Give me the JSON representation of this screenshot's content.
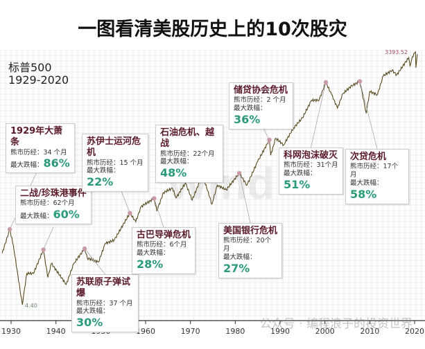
{
  "title": "一图看清美股历史上的10次股灾",
  "index_name": "标普500",
  "period": "1929-2020",
  "watermark": "公众号 · 编程浪子的投资世界",
  "colors": {
    "line": "#5a4a20",
    "marker": "#c99aa6",
    "pct": "#2a9a7a",
    "event_name": "#5a1a2a"
  },
  "chart_data": {
    "type": "line",
    "title": "一图看清美股历史上的10次股灾",
    "yscale": "log",
    "grid": true,
    "xlim": [
      1928,
      2021
    ],
    "xticks": [
      1930,
      1940,
      1950,
      1960,
      1970,
      1980,
      1990,
      2000,
      2010,
      2020
    ],
    "ylim": [
      4,
      4000
    ],
    "annotations_values": {
      "low": "4.40",
      "high": "3393.52"
    },
    "x": [
      1928,
      1929.7,
      1930.5,
      1932.5,
      1933.5,
      1935,
      1937.2,
      1938.2,
      1939,
      1942.3,
      1944,
      1946.4,
      1947,
      1949.5,
      1951,
      1953,
      1956.5,
      1957.8,
      1959,
      1961.9,
      1962.5,
      1964,
      1966,
      1966.8,
      1968.9,
      1970.4,
      1972,
      1973,
      1974.8,
      1976,
      1978,
      1980.9,
      1982.6,
      1985,
      1987.6,
      1987.9,
      1989,
      1990.8,
      1993,
      1995,
      1997,
      1998.7,
      2000.2,
      2001.5,
      2002.8,
      2004,
      2006,
      2007.8,
      2009.2,
      2010,
      2011.7,
      2013,
      2015,
      2016,
      2018.7,
      2018.98,
      2019.5,
      2020.2,
      2020.3,
      2020.6
    ],
    "values": [
      17,
      31.9,
      21,
      4.4,
      10,
      10,
      18.7,
      9,
      13,
      7.5,
      13,
      19.2,
      15,
      13.5,
      22,
      24,
      49,
      39,
      58,
      72,
      52,
      84,
      94,
      73,
      108,
      69,
      110,
      120,
      62,
      102,
      90,
      140,
      102,
      190,
      336,
      224,
      350,
      295,
      460,
      600,
      950,
      957,
      1527,
      1100,
      776,
      1130,
      1400,
      1565,
      676,
      1200,
      1100,
      1800,
      2100,
      1850,
      2930,
      2350,
      3000,
      3393.52,
      2237,
      3200
    ],
    "events": [
      {
        "name": "1929年大萧条",
        "duration_label": "熊市历经：",
        "duration": "34 个月",
        "drop_label": "最大跌幅：",
        "drop": "86%",
        "year": 1929.7
      },
      {
        "name": "二战/珍珠港事件",
        "duration_label": "熊市历经：",
        "duration": "62个月",
        "drop_label": "最大跌幅：",
        "drop": "60%",
        "year": 1937.2
      },
      {
        "name": "苏联原子弹试爆",
        "duration_label": "熊市历经：",
        "duration": "37 个月",
        "drop_label": "最大跌幅：",
        "drop": "30%",
        "year": 1946.4
      },
      {
        "name": "苏伊士运河危机",
        "duration_label": "熊市历经：",
        "duration": "15 个月",
        "drop_label": "最大跌幅：",
        "drop": "22%",
        "year": 1956.5
      },
      {
        "name": "古巴导弹危机",
        "duration_label": "熊市历经：",
        "duration": "6个月",
        "drop_label": "最大跌幅：",
        "drop": "28%",
        "year": 1961.9
      },
      {
        "name": "石油危机、越战",
        "duration_label": "熊市历经：",
        "duration": "22个月",
        "drop_label": "最大跌幅：",
        "drop": "48%",
        "year": 1973
      },
      {
        "name": "美国银行危机",
        "duration_label": "熊市历经：",
        "duration": "20个月",
        "drop_label": "最大跌幅：",
        "drop": "27%",
        "year": 1980.9
      },
      {
        "name": "储贷协会危机",
        "duration_label": "熊市历经：",
        "duration": "2 个月",
        "drop_label": "最大跌幅：",
        "drop": "36%",
        "year": 1987.6
      },
      {
        "name": "科网泡沫破灭",
        "duration_label": "熊市历经：",
        "duration": "31个月",
        "drop_label": "最大跌幅：",
        "drop": "51%",
        "year": 2000.2
      },
      {
        "name": "次贷危机",
        "duration_label": "熊市历经：",
        "duration": "17个月",
        "drop_label": "最大跌幅：",
        "drop": "58%",
        "year": 2007.8
      }
    ]
  }
}
